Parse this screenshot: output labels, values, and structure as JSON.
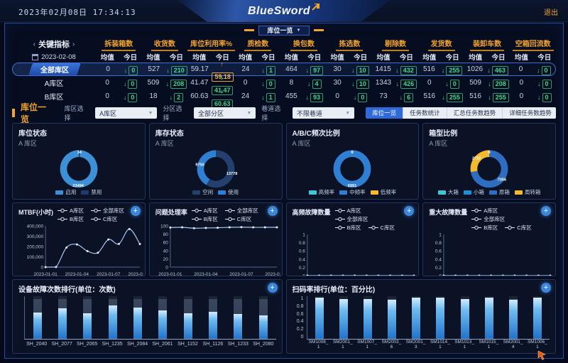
{
  "header": {
    "datetime": "2023年02月08日  17:34:13",
    "logo": "BlueSword",
    "logout": "退出"
  },
  "page_tab": {
    "label": "库位一览"
  },
  "ui": {
    "expand_label": "+"
  },
  "kpi": {
    "title": "关键指标",
    "date": "2023-02-08",
    "subcols": {
      "avg": "均值",
      "today": "今日"
    },
    "columns": [
      "拆装箱数",
      "收货数",
      "库位利用率%",
      "质检数",
      "换包数",
      "拣选数",
      "剔除数",
      "发货数",
      "装卸车数",
      "空箱回流数"
    ],
    "rows": [
      {
        "name": "全部库区",
        "selected": true,
        "cells": [
          {
            "avg": "0",
            "today": "0",
            "dir": "down"
          },
          {
            "avg": "527",
            "today": "210",
            "dir": "down"
          },
          {
            "avg": "59.17",
            "today": "59.18",
            "dir": "up",
            "highlight": true
          },
          {
            "avg": "24",
            "today": "1",
            "dir": "down"
          },
          {
            "avg": "464",
            "today": "97",
            "dir": "down"
          },
          {
            "avg": "30",
            "today": "10",
            "dir": "down"
          },
          {
            "avg": "1415",
            "today": "432",
            "dir": "down"
          },
          {
            "avg": "516",
            "today": "255",
            "dir": "down"
          },
          {
            "avg": "1026",
            "today": "463",
            "dir": "down"
          },
          {
            "avg": "0",
            "today": "0",
            "dir": "down"
          }
        ]
      },
      {
        "name": "A库区",
        "selected": false,
        "cells": [
          {
            "avg": "0",
            "today": "0",
            "dir": "down"
          },
          {
            "avg": "509",
            "today": "208",
            "dir": "down"
          },
          {
            "avg": "41.47",
            "today": "41.47",
            "dir": "down"
          },
          {
            "avg": "0",
            "today": "0",
            "dir": "down"
          },
          {
            "avg": "8",
            "today": "4",
            "dir": "down"
          },
          {
            "avg": "30",
            "today": "10",
            "dir": "down"
          },
          {
            "avg": "1343",
            "today": "426",
            "dir": "down"
          },
          {
            "avg": "0",
            "today": "0",
            "dir": "down"
          },
          {
            "avg": "509",
            "today": "208",
            "dir": "down"
          },
          {
            "avg": "0",
            "today": "0",
            "dir": "down"
          }
        ]
      },
      {
        "name": "B库区",
        "selected": false,
        "cells": [
          {
            "avg": "0",
            "today": "0",
            "dir": "down"
          },
          {
            "avg": "18",
            "today": "2",
            "dir": "down"
          },
          {
            "avg": "60.63",
            "today": "60.63",
            "dir": "down"
          },
          {
            "avg": "24",
            "today": "1",
            "dir": "down"
          },
          {
            "avg": "455",
            "today": "93",
            "dir": "down"
          },
          {
            "avg": "0",
            "today": "0",
            "dir": "down"
          },
          {
            "avg": "73",
            "today": "6",
            "dir": "down"
          },
          {
            "avg": "516",
            "today": "255",
            "dir": "down"
          },
          {
            "avg": "516",
            "today": "255",
            "dir": "down"
          },
          {
            "avg": "0",
            "today": "0",
            "dir": "down"
          }
        ]
      }
    ]
  },
  "filters": {
    "section_title": "库位一览",
    "selects": [
      {
        "label": "库区选择",
        "value": "A库区"
      },
      {
        "label": "分区选择",
        "value": "全部分区"
      },
      {
        "label": "巷道选择",
        "value": "不限巷道"
      }
    ],
    "view_tabs": [
      {
        "label": "库位一览",
        "active": true
      },
      {
        "label": "任务数统计",
        "active": false
      },
      {
        "label": "汇总任务数趋势",
        "active": false
      },
      {
        "label": "详细任务数趋势",
        "active": false
      }
    ]
  },
  "colors": {
    "accent_orange": "#f3a42e",
    "active_blue": "#2f6bd8",
    "green": "#3fd98a",
    "donut_blue": "#3D8FD6",
    "donut_dark": "#1E3B70",
    "teal": "#3FC8D4",
    "yellow": "#F5B930",
    "bar_fill_top": "#d2ecfb",
    "bar_fill_bottom": "#2173c9",
    "bar_track": "#3a465e",
    "line_series": "#A9C7EF"
  },
  "chart_data": [
    {
      "id": "d1",
      "type": "pie",
      "title": "库位状态",
      "subtitle": "A 库区",
      "slices": [
        {
          "name": "禁用",
          "value": 34,
          "color": "#1E3B70"
        },
        {
          "name": "启用",
          "value": 23494,
          "color": "#3D8FD6"
        }
      ],
      "legend": [
        {
          "label": "启用",
          "color": "#3D8FD6"
        },
        {
          "label": "禁用",
          "color": "#1E3B70"
        }
      ]
    },
    {
      "id": "d2",
      "type": "pie",
      "title": "库存状态",
      "subtitle": "A 库区",
      "slices": [
        {
          "name": "空闲",
          "value": 13778,
          "color": "#24406E"
        },
        {
          "name": "使用",
          "value": 9750,
          "color": "#2F7FD3"
        }
      ],
      "legend": [
        {
          "label": "空闲",
          "color": "#24406E"
        },
        {
          "label": "使用",
          "color": "#2F7FD3"
        }
      ]
    },
    {
      "id": "d3",
      "type": "pie",
      "title": "A/B/C频次比例",
      "subtitle": "A 库区",
      "slices": [
        {
          "name": "高频率",
          "value": 0,
          "color": "#3FC8D4"
        },
        {
          "name": "中频率",
          "value": 6991,
          "color": "#2F7FD3"
        },
        {
          "name": "低频率",
          "value": 0,
          "color": "#F5B930"
        }
      ],
      "legend": [
        {
          "label": "高频率",
          "color": "#3FC8D4"
        },
        {
          "label": "中频率",
          "color": "#2F7FD3"
        },
        {
          "label": "低频率",
          "color": "#F5B930"
        }
      ]
    },
    {
      "id": "d4",
      "type": "pie",
      "title": "箱型比例",
      "subtitle": "A 库区",
      "slices": [
        {
          "name": "大箱",
          "value": 0,
          "color": "#3FC8D4"
        },
        {
          "name": "小箱",
          "value": 0,
          "color": "#1F8FD6"
        },
        {
          "name": "原箱",
          "value": 7056,
          "color": "#2E6DC0"
        },
        {
          "name": "周转箱",
          "value": 2710,
          "color": "#F5B930"
        }
      ],
      "legend": [
        {
          "label": "大箱",
          "color": "#3FC8D4"
        },
        {
          "label": "小箱",
          "color": "#1F8FD6"
        },
        {
          "label": "原箱",
          "color": "#2E6DC0"
        },
        {
          "label": "周转箱",
          "color": "#F5B930"
        }
      ]
    },
    {
      "id": "l1",
      "type": "line",
      "title": "MTBF(小时)",
      "legend": [
        "A库区",
        "全部库区",
        "B库区",
        "C库区"
      ],
      "x": [
        "2023-01-01",
        "2023-01-02",
        "2023-01-03",
        "2023-01-04",
        "2023-01-05",
        "2023-01-06",
        "2023-01-07",
        "2023-01-08",
        "2023-01-09",
        "2023-01-10"
      ],
      "series": [
        {
          "name": "A库区",
          "color": "#A9C7EF",
          "values": [
            0,
            1000,
            190000,
            220000,
            155000,
            140000,
            268000,
            225000,
            370000,
            224000
          ]
        }
      ],
      "ylim": [
        0,
        400000
      ],
      "y_tick_labels": [
        "0",
        "100,000",
        "200,000",
        "300,000",
        "400,000"
      ],
      "x_ticks": [
        "2023-01-01",
        "2023-01-04",
        "2023-01-07",
        "2023-01-10"
      ]
    },
    {
      "id": "l2",
      "type": "line",
      "title": "问题处理率",
      "legend": [
        "A库区",
        "全部库区",
        "B库区",
        "C库区"
      ],
      "x": [
        "2023-01-01",
        "2023-01-02",
        "2023-01-03",
        "2023-01-04",
        "2023-01-05",
        "2023-01-06",
        "2023-01-07",
        "2023-01-08",
        "2023-01-09",
        "2023-01-10"
      ],
      "series": [
        {
          "name": "A库区",
          "color": "#A9C7EF",
          "values": [
            96,
            96.5,
            94.5,
            95,
            95.5,
            96.5,
            97,
            96.5,
            96.5,
            96.5
          ]
        }
      ],
      "ylim": [
        0,
        100
      ],
      "y_tick_labels": [
        "0",
        "20",
        "40",
        "60",
        "80",
        "100"
      ],
      "x_ticks": [
        "2023-01-01",
        "2023-01-04",
        "2023-01-07",
        "2023-01-10"
      ]
    },
    {
      "id": "l3",
      "type": "line",
      "title": "高频故障数量",
      "legend": [
        "A库区",
        "全部库区",
        "B库区",
        "C库区"
      ],
      "x": [
        "2023-01-01",
        "2023-01-02",
        "2023-01-03",
        "2023-01-04",
        "2023-01-05",
        "2023-01-06",
        "2023-01-07",
        "2023-01-08",
        "2023-01-09",
        "2023-01-10"
      ],
      "series": [
        {
          "name": "A库区",
          "color": "#A9C7EF",
          "values": [
            0,
            0,
            0,
            0,
            0,
            0,
            0,
            0,
            0,
            0
          ]
        }
      ],
      "ylim": [
        0,
        1
      ],
      "y_tick_labels": [
        "0",
        "0.2",
        "0.4",
        "0.6",
        "0.8",
        "1"
      ],
      "x_ticks": [
        "2023-01-01",
        "2023-01-04",
        "2023-01-07",
        "2023-01-10"
      ]
    },
    {
      "id": "l4",
      "type": "line",
      "title": "重大故障数量",
      "legend": [
        "A库区",
        "全部库区",
        "B库区",
        "C库区"
      ],
      "x": [
        "2023-01-01",
        "2023-01-02",
        "2023-01-03",
        "2023-01-04",
        "2023-01-05",
        "2023-01-06",
        "2023-01-07",
        "2023-01-08",
        "2023-01-09",
        "2023-01-10"
      ],
      "series": [
        {
          "name": "A库区",
          "color": "#A9C7EF",
          "values": [
            0,
            0,
            0,
            0,
            0,
            0,
            0,
            0,
            0,
            0
          ]
        }
      ],
      "ylim": [
        0,
        1
      ],
      "y_tick_labels": [
        "0",
        "0.2",
        "0.4",
        "0.6",
        "0.8",
        "1"
      ],
      "x_ticks": [
        "2023-01-01",
        "2023-01-04",
        "2023-01-07",
        "2023-01-10"
      ]
    },
    {
      "id": "b1",
      "type": "bar",
      "title": "设备故障次数排行(单位：次数)",
      "categories": [
        "SH_2040",
        "SH_2077",
        "SH_2065",
        "SH_1235",
        "SH_2084",
        "SH_2061",
        "SH_1152",
        "SH_1126",
        "SH_1233",
        "SH_2080"
      ],
      "values": [
        0.62,
        0.72,
        0.6,
        0.78,
        0.74,
        0.66,
        0.6,
        0.63,
        0.58,
        0.55
      ],
      "ylim": [
        0,
        1
      ],
      "y_tick_labels": [],
      "note": "y-axis unlabeled in source; values are fraction of full column height",
      "wrap_labels": false
    },
    {
      "id": "b2",
      "type": "bar",
      "title": "扫码率排行(单位：百分比)",
      "categories": [
        "SM1008_1",
        "SM2001_1",
        "SM1007_1",
        "SM2003_6",
        "SM2001_3",
        "SM1014_1",
        "SM1013_1",
        "SM1015_1",
        "SM2001_4",
        "SM1006_1"
      ],
      "values": [
        0.97,
        0.93,
        0.94,
        0.91,
        0.97,
        0.96,
        0.93,
        0.96,
        0.92,
        0.97
      ],
      "ylim": [
        0,
        1
      ],
      "y_tick_labels": [
        "0",
        "0.2",
        "0.4",
        "0.6",
        "0.8",
        "1"
      ],
      "wrap_labels": true
    }
  ]
}
